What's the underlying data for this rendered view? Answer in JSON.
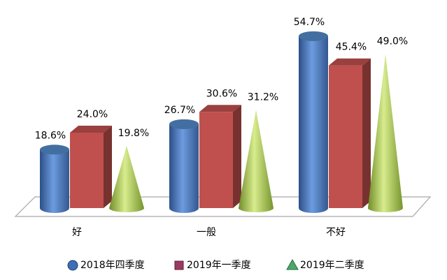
{
  "chart_data": {
    "type": "bar3d",
    "categories": [
      "好",
      "一般",
      "不好"
    ],
    "series": [
      {
        "name": "2018年四季度",
        "color": "#4f81bd",
        "shape": "cylinder",
        "values": [
          18.6,
          26.7,
          54.7
        ],
        "value_labels": [
          "18.6%",
          "26.7%",
          "54.7%"
        ]
      },
      {
        "name": "2019年一季度",
        "color": "#c0504d",
        "shape": "box",
        "values": [
          24.0,
          30.6,
          45.4
        ],
        "value_labels": [
          "24.0%",
          "30.6%",
          "45.4%"
        ]
      },
      {
        "name": "2019年二季度",
        "color": "#9bbb59",
        "shape": "cone",
        "values": [
          19.8,
          31.2,
          49.0
        ],
        "value_labels": [
          "19.8%",
          "31.2%",
          "49.0%"
        ]
      }
    ],
    "legend": "bottom"
  }
}
